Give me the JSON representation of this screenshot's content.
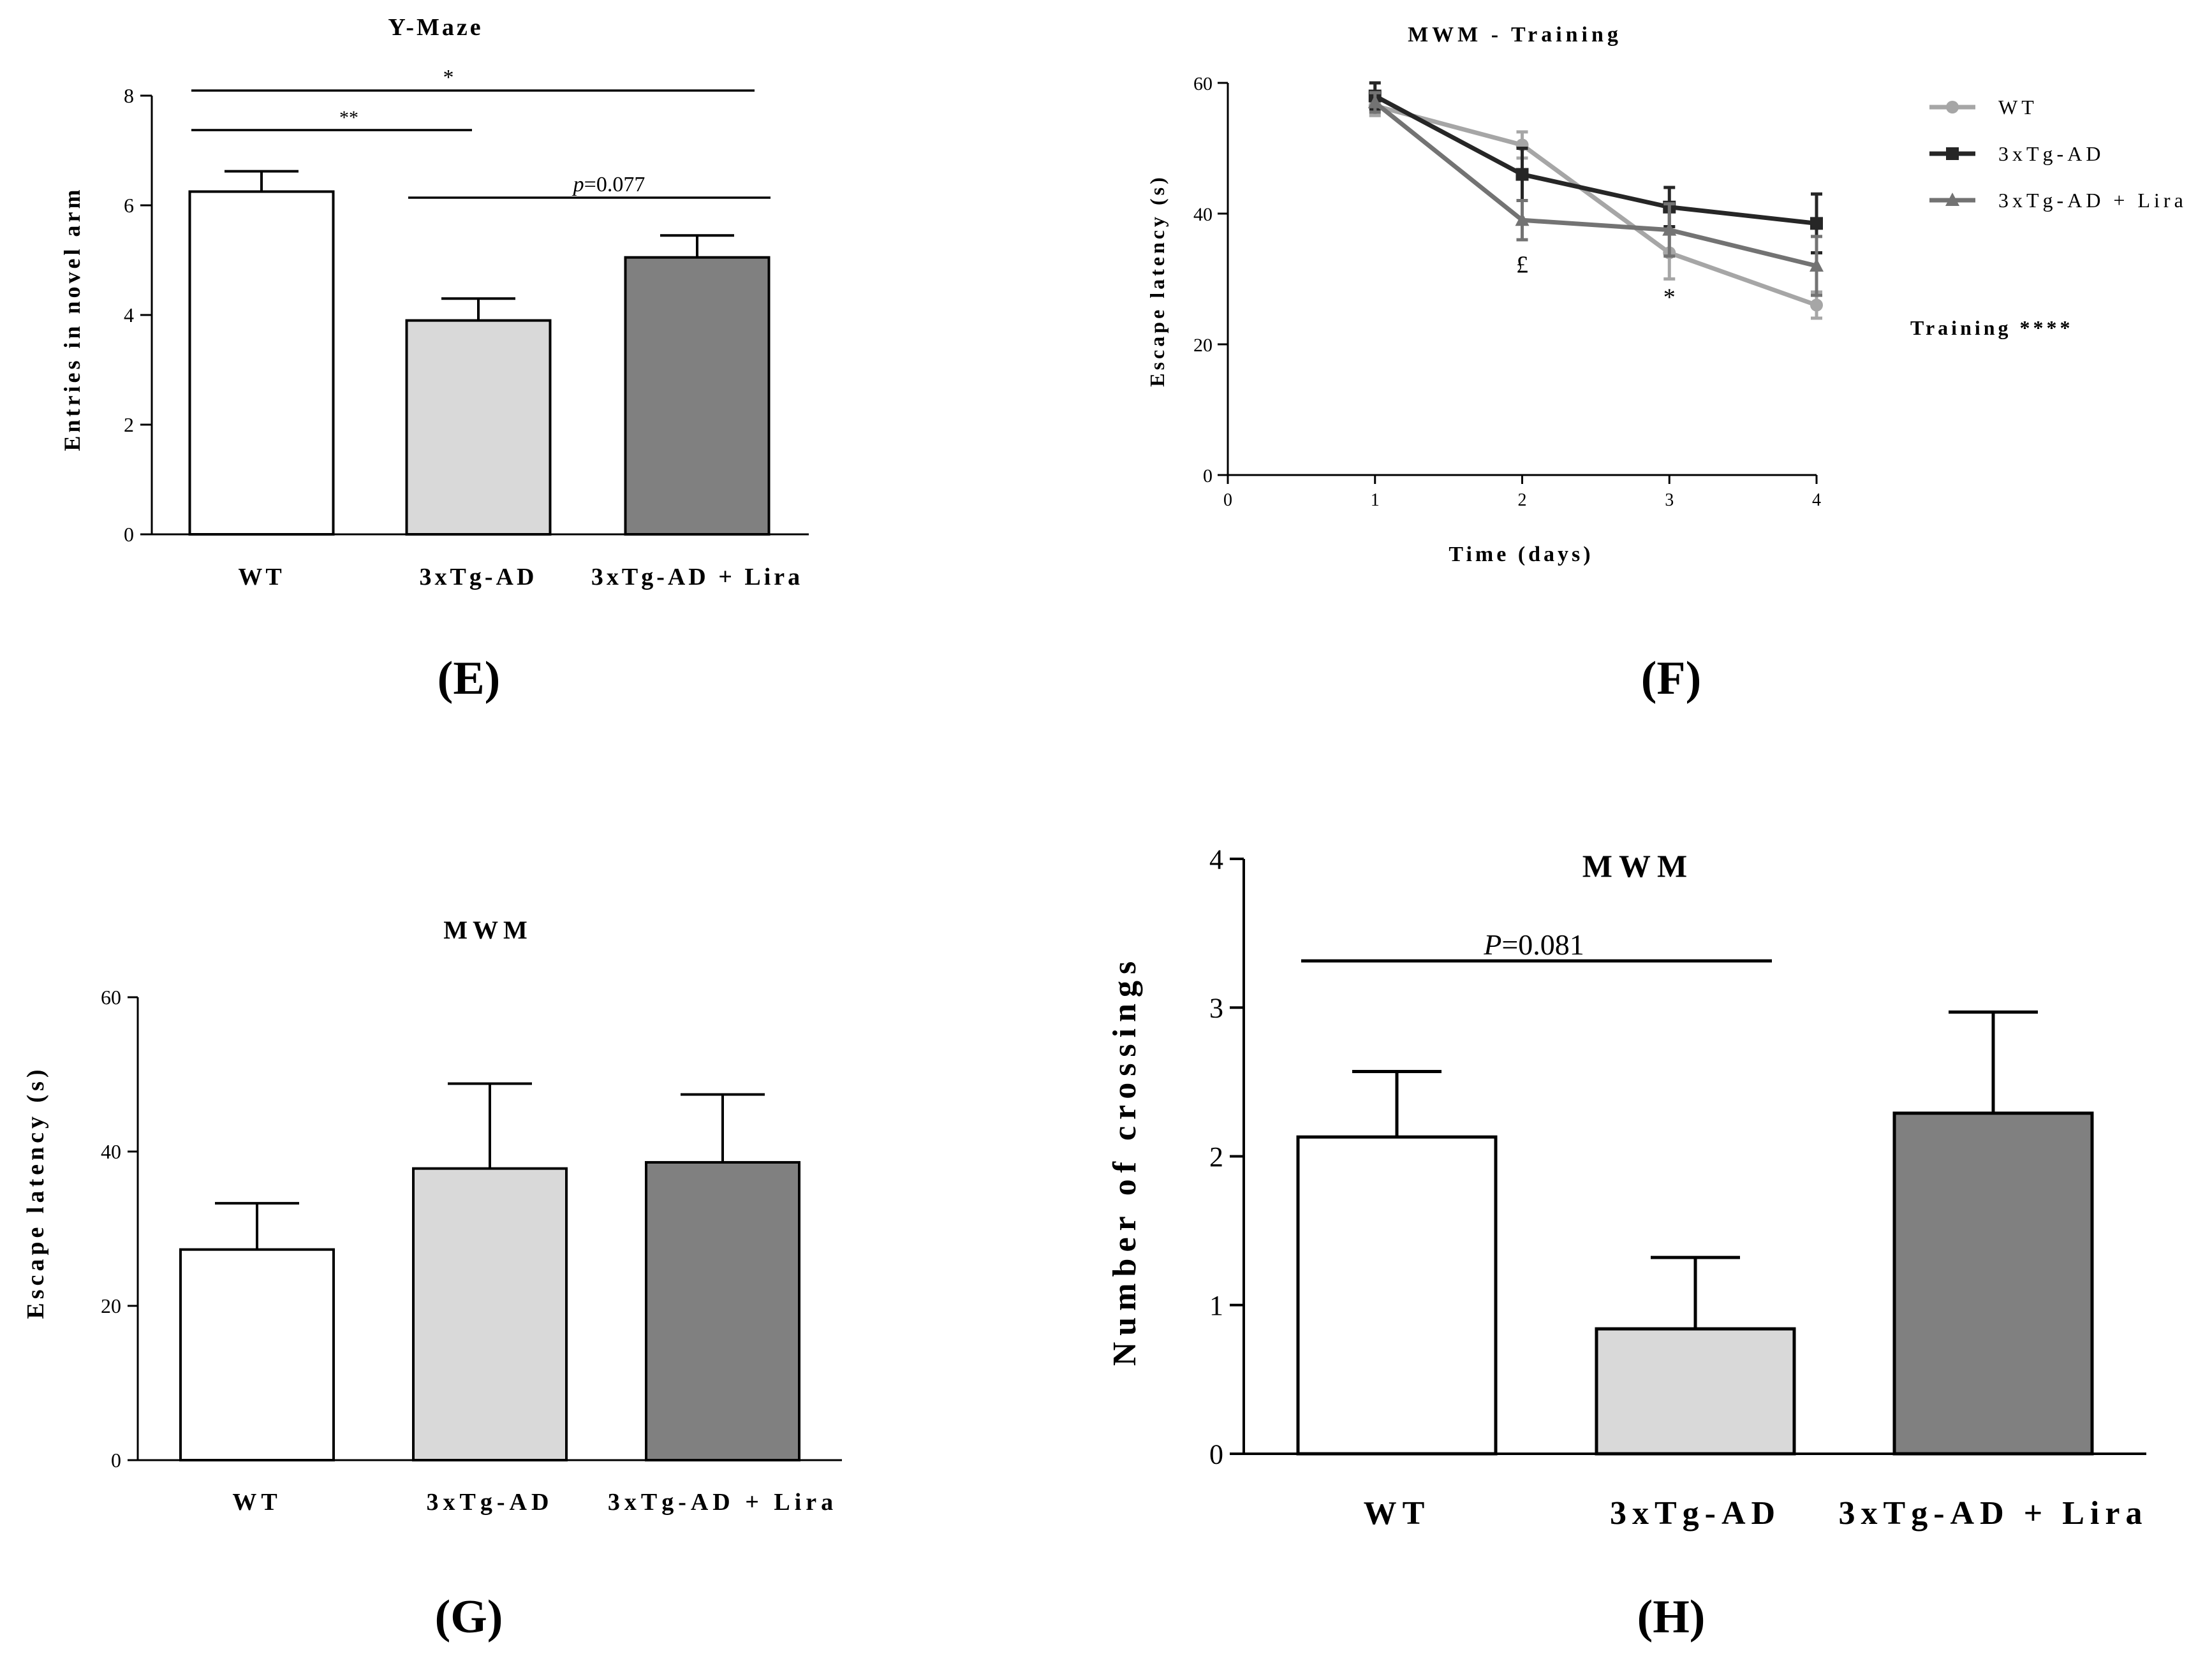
{
  "chart_data": [
    {
      "id": "E",
      "type": "bar",
      "panel_label": "(E)",
      "title": "Y-Maze",
      "ylabel": "Entries in novel arm",
      "xlabel": "",
      "ylim": [
        0,
        8
      ],
      "yticks": [
        0,
        2,
        4,
        6,
        8
      ],
      "categories": [
        "WT",
        "3xTg-AD",
        "3xTg-AD + Lira"
      ],
      "values": [
        6.25,
        3.9,
        5.05
      ],
      "errors": [
        0.37,
        0.4,
        0.4
      ],
      "fills": [
        "#ffffff",
        "#d9d9d9",
        "#808080"
      ],
      "annotations": [
        {
          "label": "*",
          "from": 0,
          "to": 2
        },
        {
          "label": "**",
          "from": 0,
          "to": 1
        },
        {
          "label_prefix": "p",
          "label": "=0.077",
          "from": 1,
          "to": 2
        }
      ]
    },
    {
      "id": "F",
      "type": "line",
      "panel_label": "(F)",
      "title": "MWM - Training",
      "ylabel": "Escape latency (s)",
      "xlabel": "Time (days)",
      "xlim": [
        0,
        4
      ],
      "ylim": [
        0,
        60
      ],
      "xticks": [
        0,
        1,
        2,
        3,
        4
      ],
      "yticks": [
        0,
        20,
        40,
        60
      ],
      "x": [
        1,
        2,
        3,
        4
      ],
      "series": [
        {
          "name": "WT",
          "values": [
            56.5,
            50.5,
            34.0,
            26.0
          ],
          "errors": [
            1.5,
            2.0,
            4.0,
            2.0
          ],
          "color": "#a6a6a6",
          "marker": "circle"
        },
        {
          "name": "3xTg-AD",
          "values": [
            58.0,
            46.0,
            41.0,
            38.5
          ],
          "errors": [
            2.0,
            4.0,
            3.0,
            4.5
          ],
          "color": "#262626",
          "marker": "square"
        },
        {
          "name": "3xTg-AD + Lira",
          "values": [
            57.0,
            39.0,
            37.5,
            32.0
          ],
          "errors": [
            1.5,
            3.0,
            4.0,
            4.5
          ],
          "color": "#737373",
          "marker": "triangle"
        }
      ],
      "markers_text": [
        {
          "label": "£",
          "x": 2,
          "y": 31
        },
        {
          "label": "*",
          "x": 3,
          "y": 26
        }
      ],
      "side_note": "Training ****"
    },
    {
      "id": "G",
      "type": "bar",
      "panel_label": "(G)",
      "title": "MWM",
      "ylabel": "Escape latency (s)",
      "xlabel": "",
      "ylim": [
        0,
        60
      ],
      "yticks": [
        0,
        20,
        40,
        60
      ],
      "categories": [
        "WT",
        "3xTg-AD",
        "3xTg-AD + Lira"
      ],
      "values": [
        27.3,
        37.8,
        38.6
      ],
      "errors": [
        6.0,
        11.0,
        8.8
      ],
      "fills": [
        "#ffffff",
        "#d9d9d9",
        "#808080"
      ],
      "annotations": []
    },
    {
      "id": "H",
      "type": "bar",
      "panel_label": "(H)",
      "title": "MWM",
      "ylabel": "Number of crossings",
      "xlabel": "",
      "ylim": [
        0,
        4
      ],
      "yticks": [
        0,
        1,
        2,
        3,
        4
      ],
      "categories": [
        "WT",
        "3xTg-AD",
        "3xTg-AD + Lira"
      ],
      "values": [
        2.13,
        0.84,
        2.29
      ],
      "errors": [
        0.44,
        0.48,
        0.68
      ],
      "fills": [
        "#ffffff",
        "#d9d9d9",
        "#808080"
      ],
      "annotations": [
        {
          "label_prefix": "P",
          "label": "=0.081",
          "from": 0,
          "to": 1
        }
      ]
    }
  ]
}
